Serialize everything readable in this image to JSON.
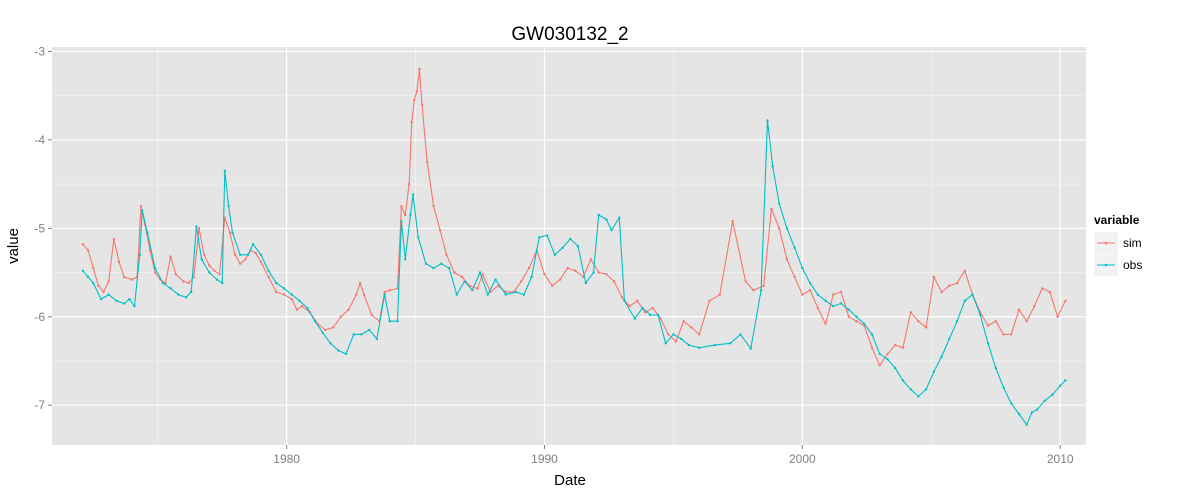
{
  "chart_data": {
    "type": "line",
    "title": "GW030132_2",
    "xlabel": "Date",
    "ylabel": "value",
    "x_unit": "year",
    "xlim": [
      1970.9,
      2011
    ],
    "ylim": [
      -7.45,
      -2.95
    ],
    "x_ticks": [
      1980,
      1990,
      2000,
      2010
    ],
    "x_tick_labels": [
      "1980",
      "1990",
      "2000",
      "2010"
    ],
    "y_ticks": [
      -3,
      -4,
      -5,
      -6,
      -7
    ],
    "y_tick_labels": [
      "-3",
      "-4",
      "-5",
      "-6",
      "-7"
    ],
    "grid": true,
    "legend": {
      "title": "variable",
      "position": "right"
    },
    "series": [
      {
        "name": "sim",
        "color": "#F8766D",
        "points": [
          [
            1972.1,
            -5.18
          ],
          [
            1972.3,
            -5.25
          ],
          [
            1972.5,
            -5.45
          ],
          [
            1972.7,
            -5.65
          ],
          [
            1972.9,
            -5.72
          ],
          [
            1973.1,
            -5.6
          ],
          [
            1973.3,
            -5.12
          ],
          [
            1973.5,
            -5.38
          ],
          [
            1973.7,
            -5.55
          ],
          [
            1974.0,
            -5.58
          ],
          [
            1974.2,
            -5.55
          ],
          [
            1974.35,
            -4.75
          ],
          [
            1974.5,
            -4.95
          ],
          [
            1974.7,
            -5.25
          ],
          [
            1974.9,
            -5.5
          ],
          [
            1975.1,
            -5.58
          ],
          [
            1975.3,
            -5.62
          ],
          [
            1975.5,
            -5.32
          ],
          [
            1975.7,
            -5.52
          ],
          [
            1976.0,
            -5.6
          ],
          [
            1976.2,
            -5.62
          ],
          [
            1976.4,
            -5.55
          ],
          [
            1976.6,
            -5.0
          ],
          [
            1976.8,
            -5.3
          ],
          [
            1977.0,
            -5.42
          ],
          [
            1977.2,
            -5.48
          ],
          [
            1977.4,
            -5.52
          ],
          [
            1977.6,
            -4.88
          ],
          [
            1977.8,
            -5.05
          ],
          [
            1978.0,
            -5.3
          ],
          [
            1978.2,
            -5.4
          ],
          [
            1978.4,
            -5.35
          ],
          [
            1978.6,
            -5.25
          ],
          [
            1978.8,
            -5.28
          ],
          [
            1979.0,
            -5.38
          ],
          [
            1979.3,
            -5.55
          ],
          [
            1979.6,
            -5.72
          ],
          [
            1979.9,
            -5.75
          ],
          [
            1980.2,
            -5.8
          ],
          [
            1980.4,
            -5.92
          ],
          [
            1980.6,
            -5.88
          ],
          [
            1980.9,
            -5.95
          ],
          [
            1981.2,
            -6.08
          ],
          [
            1981.5,
            -6.15
          ],
          [
            1981.8,
            -6.12
          ],
          [
            1982.1,
            -6.0
          ],
          [
            1982.4,
            -5.92
          ],
          [
            1982.7,
            -5.75
          ],
          [
            1982.85,
            -5.62
          ],
          [
            1983.0,
            -5.75
          ],
          [
            1983.3,
            -5.98
          ],
          [
            1983.6,
            -6.05
          ],
          [
            1983.8,
            -5.72
          ],
          [
            1984.0,
            -5.7
          ],
          [
            1984.3,
            -5.68
          ],
          [
            1984.45,
            -4.75
          ],
          [
            1984.6,
            -4.85
          ],
          [
            1984.75,
            -4.5
          ],
          [
            1984.85,
            -3.8
          ],
          [
            1984.95,
            -3.55
          ],
          [
            1985.05,
            -3.45
          ],
          [
            1985.15,
            -3.2
          ],
          [
            1985.25,
            -3.6
          ],
          [
            1985.45,
            -4.25
          ],
          [
            1985.7,
            -4.75
          ],
          [
            1985.95,
            -5.02
          ],
          [
            1986.2,
            -5.3
          ],
          [
            1986.5,
            -5.5
          ],
          [
            1986.8,
            -5.55
          ],
          [
            1987.1,
            -5.65
          ],
          [
            1987.4,
            -5.68
          ],
          [
            1987.6,
            -5.52
          ],
          [
            1987.9,
            -5.72
          ],
          [
            1988.2,
            -5.65
          ],
          [
            1988.5,
            -5.72
          ],
          [
            1988.8,
            -5.72
          ],
          [
            1989.1,
            -5.6
          ],
          [
            1989.4,
            -5.45
          ],
          [
            1989.7,
            -5.25
          ],
          [
            1990.0,
            -5.52
          ],
          [
            1990.3,
            -5.65
          ],
          [
            1990.6,
            -5.58
          ],
          [
            1990.9,
            -5.45
          ],
          [
            1991.2,
            -5.48
          ],
          [
            1991.5,
            -5.55
          ],
          [
            1991.8,
            -5.35
          ],
          [
            1992.1,
            -5.5
          ],
          [
            1992.4,
            -5.52
          ],
          [
            1992.7,
            -5.6
          ],
          [
            1993.0,
            -5.78
          ],
          [
            1993.3,
            -5.88
          ],
          [
            1993.6,
            -5.82
          ],
          [
            1993.9,
            -5.95
          ],
          [
            1994.2,
            -5.9
          ],
          [
            1994.5,
            -6.02
          ],
          [
            1994.8,
            -6.2
          ],
          [
            1995.1,
            -6.28
          ],
          [
            1995.4,
            -6.05
          ],
          [
            1995.7,
            -6.12
          ],
          [
            1996.0,
            -6.2
          ],
          [
            1996.4,
            -5.82
          ],
          [
            1996.8,
            -5.75
          ],
          [
            1997.3,
            -4.92
          ],
          [
            1997.8,
            -5.6
          ],
          [
            1998.1,
            -5.7
          ],
          [
            1998.5,
            -5.65
          ],
          [
            1998.8,
            -4.78
          ],
          [
            1999.1,
            -5.0
          ],
          [
            1999.4,
            -5.35
          ],
          [
            1999.7,
            -5.55
          ],
          [
            2000.0,
            -5.75
          ],
          [
            2000.3,
            -5.7
          ],
          [
            2000.6,
            -5.9
          ],
          [
            2000.9,
            -6.08
          ],
          [
            2001.2,
            -5.75
          ],
          [
            2001.5,
            -5.72
          ],
          [
            2001.8,
            -6.0
          ],
          [
            2002.1,
            -6.05
          ],
          [
            2002.4,
            -6.1
          ],
          [
            2002.7,
            -6.35
          ],
          [
            2003.0,
            -6.55
          ],
          [
            2003.3,
            -6.42
          ],
          [
            2003.6,
            -6.32
          ],
          [
            2003.9,
            -6.35
          ],
          [
            2004.2,
            -5.95
          ],
          [
            2004.5,
            -6.05
          ],
          [
            2004.8,
            -6.12
          ],
          [
            2005.1,
            -5.55
          ],
          [
            2005.4,
            -5.72
          ],
          [
            2005.7,
            -5.65
          ],
          [
            2006.0,
            -5.62
          ],
          [
            2006.3,
            -5.48
          ],
          [
            2006.6,
            -5.75
          ],
          [
            2006.9,
            -5.95
          ],
          [
            2007.2,
            -6.1
          ],
          [
            2007.5,
            -6.05
          ],
          [
            2007.8,
            -6.2
          ],
          [
            2008.1,
            -6.2
          ],
          [
            2008.4,
            -5.92
          ],
          [
            2008.7,
            -6.05
          ],
          [
            2009.0,
            -5.88
          ],
          [
            2009.3,
            -5.68
          ],
          [
            2009.6,
            -5.72
          ],
          [
            2009.9,
            -6.0
          ],
          [
            2010.2,
            -5.82
          ]
        ]
      },
      {
        "name": "obs",
        "color": "#00BFC4",
        "points": [
          [
            1972.1,
            -5.48
          ],
          [
            1972.3,
            -5.55
          ],
          [
            1972.5,
            -5.62
          ],
          [
            1972.8,
            -5.8
          ],
          [
            1973.1,
            -5.75
          ],
          [
            1973.4,
            -5.82
          ],
          [
            1973.7,
            -5.85
          ],
          [
            1973.9,
            -5.8
          ],
          [
            1974.1,
            -5.88
          ],
          [
            1974.3,
            -5.3
          ],
          [
            1974.4,
            -4.8
          ],
          [
            1974.6,
            -5.05
          ],
          [
            1974.9,
            -5.45
          ],
          [
            1975.2,
            -5.62
          ],
          [
            1975.5,
            -5.68
          ],
          [
            1975.8,
            -5.75
          ],
          [
            1976.1,
            -5.78
          ],
          [
            1976.3,
            -5.72
          ],
          [
            1976.5,
            -4.98
          ],
          [
            1976.7,
            -5.35
          ],
          [
            1977.0,
            -5.5
          ],
          [
            1977.3,
            -5.58
          ],
          [
            1977.5,
            -5.62
          ],
          [
            1977.6,
            -4.35
          ],
          [
            1977.75,
            -4.75
          ],
          [
            1977.9,
            -5.05
          ],
          [
            1978.2,
            -5.3
          ],
          [
            1978.5,
            -5.3
          ],
          [
            1978.7,
            -5.18
          ],
          [
            1979.0,
            -5.3
          ],
          [
            1979.3,
            -5.48
          ],
          [
            1979.6,
            -5.62
          ],
          [
            1979.9,
            -5.68
          ],
          [
            1980.2,
            -5.75
          ],
          [
            1980.5,
            -5.82
          ],
          [
            1980.8,
            -5.9
          ],
          [
            1981.1,
            -6.05
          ],
          [
            1981.4,
            -6.18
          ],
          [
            1981.7,
            -6.3
          ],
          [
            1982.0,
            -6.38
          ],
          [
            1982.3,
            -6.42
          ],
          [
            1982.6,
            -6.2
          ],
          [
            1982.9,
            -6.2
          ],
          [
            1983.2,
            -6.15
          ],
          [
            1983.5,
            -6.25
          ],
          [
            1983.8,
            -5.75
          ],
          [
            1984.0,
            -6.05
          ],
          [
            1984.3,
            -6.05
          ],
          [
            1984.45,
            -4.92
          ],
          [
            1984.6,
            -5.35
          ],
          [
            1984.8,
            -4.85
          ],
          [
            1984.9,
            -4.62
          ],
          [
            1985.1,
            -5.1
          ],
          [
            1985.4,
            -5.4
          ],
          [
            1985.7,
            -5.45
          ],
          [
            1986.0,
            -5.4
          ],
          [
            1986.3,
            -5.45
          ],
          [
            1986.6,
            -5.75
          ],
          [
            1986.9,
            -5.6
          ],
          [
            1987.2,
            -5.7
          ],
          [
            1987.5,
            -5.5
          ],
          [
            1987.8,
            -5.75
          ],
          [
            1988.1,
            -5.58
          ],
          [
            1988.5,
            -5.75
          ],
          [
            1988.9,
            -5.72
          ],
          [
            1989.2,
            -5.75
          ],
          [
            1989.5,
            -5.55
          ],
          [
            1989.8,
            -5.1
          ],
          [
            1990.1,
            -5.08
          ],
          [
            1990.4,
            -5.3
          ],
          [
            1990.7,
            -5.22
          ],
          [
            1991.0,
            -5.12
          ],
          [
            1991.3,
            -5.2
          ],
          [
            1991.6,
            -5.62
          ],
          [
            1991.9,
            -5.5
          ],
          [
            1992.1,
            -4.85
          ],
          [
            1992.4,
            -4.9
          ],
          [
            1992.6,
            -5.02
          ],
          [
            1992.9,
            -4.88
          ],
          [
            1993.1,
            -5.82
          ],
          [
            1993.5,
            -6.02
          ],
          [
            1993.8,
            -5.9
          ],
          [
            1994.1,
            -5.98
          ],
          [
            1994.4,
            -5.98
          ],
          [
            1994.7,
            -6.3
          ],
          [
            1995.0,
            -6.2
          ],
          [
            1995.3,
            -6.25
          ],
          [
            1995.6,
            -6.32
          ],
          [
            1996.0,
            -6.35
          ],
          [
            1996.6,
            -6.32
          ],
          [
            1997.2,
            -6.3
          ],
          [
            1997.6,
            -6.2
          ],
          [
            1998.0,
            -6.36
          ],
          [
            1998.4,
            -5.7
          ],
          [
            1998.65,
            -3.78
          ],
          [
            1998.85,
            -4.3
          ],
          [
            1999.1,
            -4.72
          ],
          [
            1999.4,
            -5.0
          ],
          [
            1999.7,
            -5.22
          ],
          [
            2000.0,
            -5.45
          ],
          [
            2000.3,
            -5.62
          ],
          [
            2000.6,
            -5.75
          ],
          [
            2000.9,
            -5.82
          ],
          [
            2001.2,
            -5.88
          ],
          [
            2001.5,
            -5.85
          ],
          [
            2001.8,
            -5.92
          ],
          [
            2002.1,
            -6.0
          ],
          [
            2002.4,
            -6.08
          ],
          [
            2002.7,
            -6.2
          ],
          [
            2003.0,
            -6.42
          ],
          [
            2003.3,
            -6.48
          ],
          [
            2003.6,
            -6.58
          ],
          [
            2003.9,
            -6.72
          ],
          [
            2004.2,
            -6.82
          ],
          [
            2004.5,
            -6.9
          ],
          [
            2004.8,
            -6.82
          ],
          [
            2005.1,
            -6.62
          ],
          [
            2005.4,
            -6.45
          ],
          [
            2005.7,
            -6.25
          ],
          [
            2006.0,
            -6.05
          ],
          [
            2006.3,
            -5.82
          ],
          [
            2006.6,
            -5.75
          ],
          [
            2006.9,
            -5.98
          ],
          [
            2007.2,
            -6.3
          ],
          [
            2007.5,
            -6.58
          ],
          [
            2007.8,
            -6.8
          ],
          [
            2008.1,
            -6.98
          ],
          [
            2008.4,
            -7.1
          ],
          [
            2008.7,
            -7.22
          ],
          [
            2008.9,
            -7.08
          ],
          [
            2009.1,
            -7.05
          ],
          [
            2009.4,
            -6.95
          ],
          [
            2009.7,
            -6.88
          ],
          [
            2010.0,
            -6.78
          ],
          [
            2010.2,
            -6.72
          ]
        ]
      }
    ]
  }
}
